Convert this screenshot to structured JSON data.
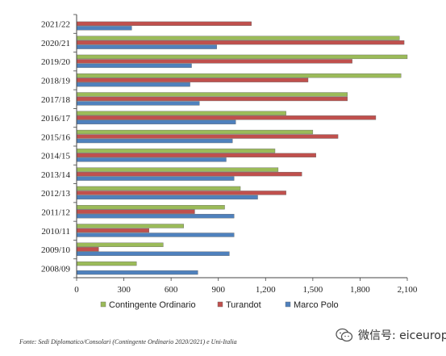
{
  "chart_data": {
    "type": "bar",
    "orientation": "horizontal",
    "categories": [
      "2021/22",
      "2020/21",
      "2019/20",
      "2018/19",
      "2017/18",
      "2016/17",
      "2015/16",
      "2014/15",
      "2013/14",
      "2012/13",
      "2011/12",
      "2010/11",
      "2009/10",
      "2008/09"
    ],
    "series": [
      {
        "name": "Contingente Ordinario",
        "color": "#9bbb59",
        "values": [
          0,
          2050,
          2100,
          2060,
          1720,
          1330,
          1500,
          1260,
          1280,
          1040,
          940,
          680,
          550,
          380
        ]
      },
      {
        "name": "Turandot",
        "color": "#c0504d",
        "values": [
          1110,
          2080,
          1750,
          1470,
          1720,
          1900,
          1660,
          1520,
          1430,
          1330,
          750,
          460,
          140,
          0
        ]
      },
      {
        "name": "Marco Polo",
        "color": "#4f81bd",
        "values": [
          350,
          890,
          730,
          720,
          780,
          1010,
          990,
          950,
          1000,
          1150,
          1000,
          1000,
          970,
          770
        ]
      }
    ],
    "xlim": [
      0,
      2100
    ],
    "xticks": [
      "0",
      "300",
      "600",
      "900",
      "1,200",
      "1,500",
      "1,800",
      "2,100"
    ],
    "grid": false,
    "legend_position": "bottom"
  },
  "source_text": "Fonte: Sedi Diplomatico/Consolari (Contingente Ordinario 2020/2021) e Uni-Italia",
  "watermark_text": "微信号: eiceurope"
}
